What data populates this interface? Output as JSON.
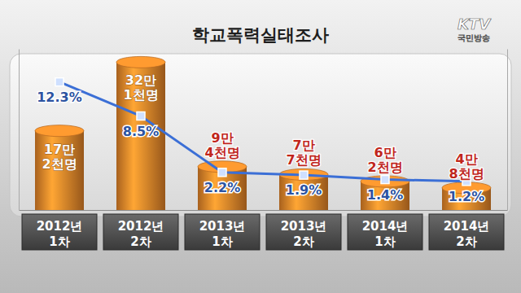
{
  "chart_data": {
    "type": "bar",
    "title": "학교폭력실태조사",
    "annotations": [
      "KTV",
      "국민방송"
    ],
    "categories": [
      "2012년 1차",
      "2012년 2차",
      "2013년 1차",
      "2013년 2차",
      "2014년 1차",
      "2014년 2차"
    ],
    "series": [
      {
        "type": "bar",
        "color": "#e8862a",
        "values": [
          172000,
          321000,
          94000,
          77000,
          62000,
          48000
        ],
        "value_labels": [
          "17만 2천명",
          "32만 1천명",
          "9만 4천명",
          "7만 7천명",
          "6만 2천명",
          "4만 8천명"
        ]
      },
      {
        "type": "line",
        "axis": "y2",
        "color": "#3b6fd6",
        "marker": "square",
        "values": [
          12.3,
          8.5,
          2.2,
          1.9,
          1.4,
          1.2
        ],
        "value_labels": [
          "12.3%",
          "8.5%",
          "2.2%",
          "1.9%",
          "1.4%",
          "1.2%"
        ]
      }
    ],
    "ylim": [
      0,
      350000
    ],
    "y2lim": [
      -2,
      16
    ],
    "data_labels": true,
    "tick_labels": "x"
  }
}
